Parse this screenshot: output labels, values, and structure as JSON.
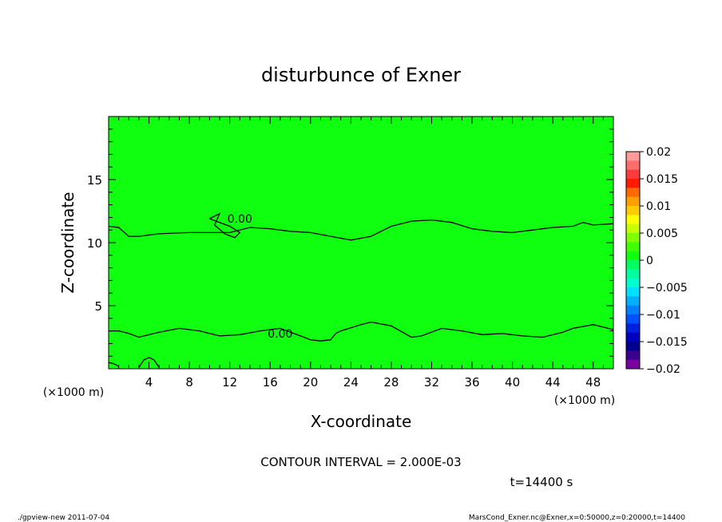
{
  "chart_data": {
    "type": "heatmap",
    "title": "disturbunce of Exner",
    "xlabel": "X-coordinate",
    "ylabel": "Z-coordinate",
    "x_unit": "(×1000 m)",
    "xlim": [
      0,
      50
    ],
    "ylim": [
      0,
      20
    ],
    "x_ticks": [
      4,
      8,
      12,
      16,
      20,
      24,
      28,
      32,
      36,
      40,
      44,
      48
    ],
    "y_ticks": [
      5,
      10,
      15
    ],
    "contour_interval_label": "CONTOUR INTERVAL = 2.000E-03",
    "time_label": "t=14400 s",
    "field_color": "#10ff10",
    "field_value": 0,
    "contour_labels": [
      {
        "text": "0.00",
        "x": 13,
        "z": 11.9
      },
      {
        "text": "0.00",
        "x": 17,
        "z": 2.8
      }
    ],
    "contours": [
      {
        "level": 0.0,
        "points": [
          [
            0,
            11.3
          ],
          [
            1,
            11.2
          ],
          [
            2,
            10.5
          ],
          [
            3,
            10.5
          ],
          [
            5,
            10.7
          ],
          [
            8,
            10.8
          ],
          [
            10,
            10.8
          ],
          [
            12,
            10.8
          ],
          [
            14,
            11.2
          ],
          [
            16,
            11.1
          ],
          [
            18,
            10.9
          ],
          [
            20,
            10.8
          ],
          [
            22,
            10.5
          ],
          [
            24,
            10.2
          ],
          [
            26,
            10.5
          ],
          [
            28,
            11.3
          ],
          [
            30,
            11.7
          ],
          [
            32,
            11.8
          ],
          [
            34,
            11.6
          ],
          [
            36,
            11.1
          ],
          [
            38,
            10.9
          ],
          [
            40,
            10.8
          ],
          [
            42,
            11.0
          ],
          [
            44,
            11.2
          ],
          [
            46,
            11.3
          ],
          [
            47,
            11.6
          ],
          [
            48,
            11.4
          ],
          [
            50,
            11.5
          ]
        ]
      },
      {
        "level": 0.0,
        "points": [
          [
            10,
            11.9
          ],
          [
            11,
            12.3
          ],
          [
            10.5,
            11.4
          ],
          [
            11.5,
            10.7
          ],
          [
            12.5,
            10.4
          ],
          [
            13,
            10.8
          ],
          [
            12,
            11.3
          ],
          [
            10,
            11.9
          ]
        ]
      },
      {
        "level": 0.0,
        "points": [
          [
            0,
            3.0
          ],
          [
            1,
            3.0
          ],
          [
            2,
            2.8
          ],
          [
            3,
            2.5
          ],
          [
            5,
            2.9
          ],
          [
            7,
            3.2
          ],
          [
            9,
            3.0
          ],
          [
            11,
            2.6
          ],
          [
            13,
            2.7
          ],
          [
            15,
            3.0
          ],
          [
            17,
            3.2
          ],
          [
            19,
            2.6
          ],
          [
            20,
            2.3
          ],
          [
            21,
            2.2
          ],
          [
            22,
            2.3
          ],
          [
            22.5,
            2.8
          ],
          [
            23,
            3.0
          ],
          [
            25,
            3.5
          ],
          [
            26,
            3.7
          ],
          [
            28,
            3.4
          ],
          [
            30,
            2.5
          ],
          [
            31,
            2.6
          ],
          [
            33,
            3.2
          ],
          [
            35,
            3.0
          ],
          [
            37,
            2.7
          ],
          [
            39,
            2.8
          ],
          [
            41,
            2.6
          ],
          [
            43,
            2.5
          ],
          [
            45,
            2.9
          ],
          [
            46,
            3.2
          ],
          [
            48,
            3.5
          ],
          [
            50,
            3.1
          ]
        ]
      },
      {
        "level": 0.0,
        "points": [
          [
            3,
            0.1
          ],
          [
            3.5,
            0.7
          ],
          [
            4,
            0.9
          ],
          [
            4.5,
            0.7
          ],
          [
            5,
            0.1
          ]
        ]
      },
      {
        "level": 0.0,
        "points": [
          [
            0,
            0.5
          ],
          [
            0.5,
            0.4
          ],
          [
            1,
            0.2
          ]
        ]
      }
    ],
    "colorbar": {
      "ticks": [
        "0.02",
        "0.015",
        "0.01",
        "0.005",
        "0",
        "−0.005",
        "−0.01",
        "−0.015",
        "−0.02"
      ],
      "colors": [
        "#ff9a9a",
        "#ff6c6c",
        "#ff3a3a",
        "#ff1a00",
        "#ff6a00",
        "#ffa000",
        "#ffcc00",
        "#ffff00",
        "#c8ff00",
        "#80ff00",
        "#40ff00",
        "#10ff10",
        "#00ff60",
        "#00ffa0",
        "#00ffd0",
        "#00e0ff",
        "#00b0ff",
        "#0080ff",
        "#0050ff",
        "#0020e0",
        "#0000c0",
        "#000090",
        "#3c0090",
        "#7a00a0"
      ]
    }
  },
  "footer": {
    "left": "./gpview-new   2011-07-04",
    "right": "MarsCond_Exner.nc@Exner,x=0:50000,z=0:20000,t=14400"
  }
}
